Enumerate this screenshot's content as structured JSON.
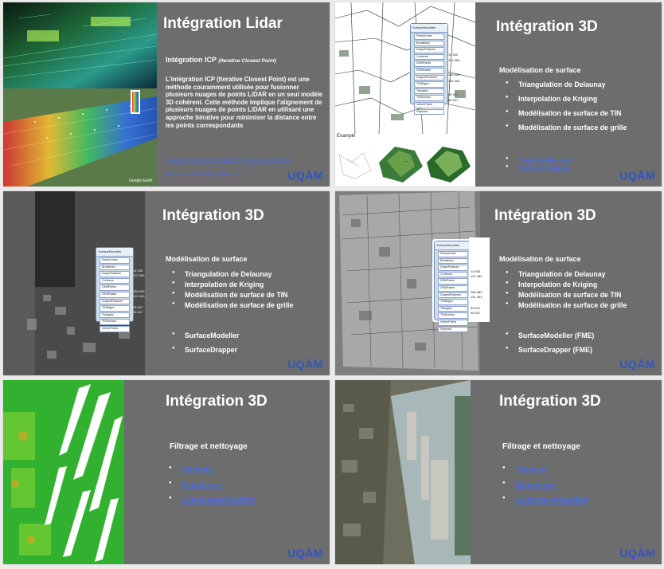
{
  "slide1": {
    "title": "Intégration Lidar",
    "subtitle": "Intégration ICP",
    "subtitle_note": "(Iterative Closest Point)",
    "body": "L'intégration ICP (Iterative Closest Point) est une méthode couramment utilisée pour fusionner plusieurs nuages de points LiDAR en un seul modèle 3D cohérent. Cette méthode implique l'alignement de plusieurs nuages de points LiDAR en utilisant une approche itérative pour minimiser la distance entre les points correspondants",
    "link1": "Iterative Closest Point (ICP) - 5 Minutes with Cyril",
    "link2": "Phoenix LiDAR Flight Planner",
    "google_earth": "Google Earth",
    "logo": "UQÀM"
  },
  "slide2": {
    "title": "Intégration 3D",
    "section": "Modélisation de surface",
    "items": [
      "Triangulation de Delaunay",
      "Interpolation de Kriging",
      "Modélisation de surface de TIN",
      "Modélisation de surface de grille"
    ],
    "links": [
      "SurfaceModeller",
      "SurfaceDrapper"
    ],
    "example_label": "Example",
    "logo": "UQÀM"
  },
  "slide3": {
    "title": "Intégration 3D",
    "section": "Modélisation de surface",
    "items": [
      "Triangulation de Delaunay",
      "Interpolation de Kriging",
      "Modélisation de surface de TIN",
      "Modélisation de surface de grille"
    ],
    "extras": [
      "SurfaceModeller",
      "SurfaceDrapper"
    ],
    "logo": "UQÀM"
  },
  "slide4": {
    "title": "Intégration 3D",
    "section": "Modélisation de surface",
    "items": [
      "Triangulation de Delaunay",
      "Interpolation de Kriging",
      "Modélisation de surface de TIN",
      "Modélisation de surface de grille"
    ],
    "extras": [
      "SurfaceModeller (FME)",
      "SurfaceDrapper (FME)"
    ],
    "logo": "UQÀM"
  },
  "slide5": {
    "title": "Intégration 3D",
    "section": "Filtrage et nettoyage",
    "links": [
      "Thinner",
      "Combiner",
      "ComponentSetter"
    ],
    "logo": "UQÀM"
  },
  "slide6": {
    "title": "Intégration 3D",
    "section": "Filtrage et nettoyage",
    "links": [
      "Thinner",
      "Combiner",
      "ComponentSetter"
    ],
    "logo": "UQÀM"
  },
  "fme_panel": {
    "header": "SurfaceModeller",
    "ports": [
      "Points/Lines",
      "Breaklines",
      "DrapeFeatures",
      "Contours",
      "DEMPoints",
      "DEMRaster",
      "DrapedFeatures",
      "TINEdges",
      "Triangles",
      "TINSurface",
      "VertexPoints",
      "Rejected"
    ],
    "side_values": [
      "14 530",
      "122 980",
      "286 689",
      "191 063",
      "95 547",
      "95 547"
    ]
  },
  "colors": {
    "slide_bg": "#6d6d6d",
    "link": "#4a6fe0",
    "logo": "#2f54c8",
    "page_bg": "#ebebeb"
  }
}
